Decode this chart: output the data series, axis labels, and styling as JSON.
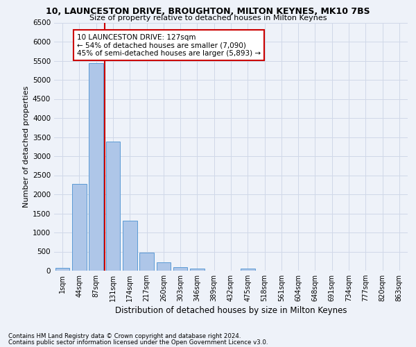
{
  "title_line1": "10, LAUNCESTON DRIVE, BROUGHTON, MILTON KEYNES, MK10 7BS",
  "title_line2": "Size of property relative to detached houses in Milton Keynes",
  "xlabel": "Distribution of detached houses by size in Milton Keynes",
  "ylabel": "Number of detached properties",
  "footnote1": "Contains HM Land Registry data © Crown copyright and database right 2024.",
  "footnote2": "Contains public sector information licensed under the Open Government Licence v3.0.",
  "bar_labels": [
    "1sqm",
    "44sqm",
    "87sqm",
    "131sqm",
    "174sqm",
    "217sqm",
    "260sqm",
    "303sqm",
    "346sqm",
    "389sqm",
    "432sqm",
    "475sqm",
    "518sqm",
    "561sqm",
    "604sqm",
    "648sqm",
    "691sqm",
    "734sqm",
    "777sqm",
    "820sqm",
    "863sqm"
  ],
  "bar_values": [
    70,
    2280,
    5440,
    3380,
    1310,
    480,
    210,
    90,
    55,
    0,
    0,
    55,
    0,
    0,
    0,
    0,
    0,
    0,
    0,
    0,
    0
  ],
  "bar_color": "#aec6e8",
  "bar_edge_color": "#5b9bd5",
  "grid_color": "#d0d8e8",
  "background_color": "#eef2f9",
  "vline_color": "#cc0000",
  "ylim": [
    0,
    6500
  ],
  "yticks": [
    0,
    500,
    1000,
    1500,
    2000,
    2500,
    3000,
    3500,
    4000,
    4500,
    5000,
    5500,
    6000,
    6500
  ],
  "annotation_text": "10 LAUNCESTON DRIVE: 127sqm\n← 54% of detached houses are smaller (7,090)\n45% of semi-detached houses are larger (5,893) →",
  "annotation_box_color": "#ffffff",
  "annotation_box_edge": "#cc0000",
  "annotation_fontsize": 7.5,
  "title1_fontsize": 9.0,
  "title2_fontsize": 8.0,
  "ylabel_fontsize": 8.0,
  "xlabel_fontsize": 8.5,
  "footnote_fontsize": 6.2,
  "tick_fontsize": 7.0,
  "ytick_fontsize": 7.5
}
